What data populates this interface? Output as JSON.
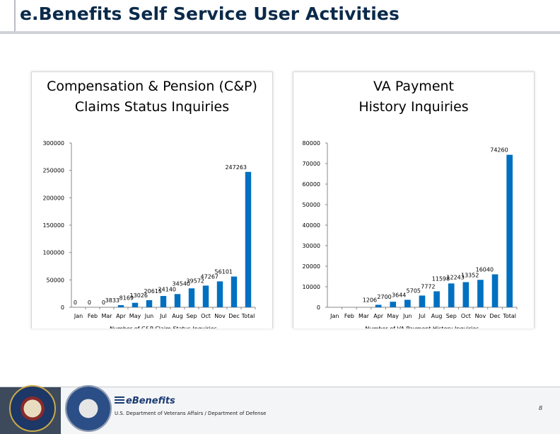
{
  "slide": {
    "title": "e.Benefits Self Service User Activities",
    "footer_org": "U.S. Department of Veterans Affairs / Department of Defense",
    "logo_text": "eBenefits",
    "page_number": "8"
  },
  "chart_data": [
    {
      "type": "bar",
      "title_lines": [
        "Compensation & Pension (C&P)",
        "Claims Status Inquiries"
      ],
      "xlabel": "Number of C&P Claim Status Inquiries",
      "ylabel": "",
      "categories": [
        "Jan",
        "Feb",
        "Mar",
        "Apr",
        "May",
        "Jun",
        "Jul",
        "Aug",
        "Sep",
        "Oct",
        "Nov",
        "Dec",
        "Total"
      ],
      "values": [
        0,
        0,
        0,
        3833,
        8169,
        13026,
        20615,
        24140,
        34540,
        39572,
        47267,
        56101,
        247263
      ],
      "data_labels": [
        "0",
        "0",
        "0",
        "3833",
        "8169",
        "13026",
        "20615",
        "24140",
        "34540",
        "39572",
        "47267",
        "56101",
        "247263"
      ],
      "ylim": [
        0,
        300000
      ],
      "yticks": [
        0,
        50000,
        100000,
        150000,
        200000,
        250000,
        300000
      ],
      "ytick_labels": [
        "0",
        "50000",
        "100000",
        "150000",
        "200000",
        "250000",
        "300000"
      ],
      "grid": false,
      "legend": "none",
      "bar_color": "#0070c0"
    },
    {
      "type": "bar",
      "title_lines": [
        "VA Payment",
        "History Inquiries"
      ],
      "xlabel": "Number of VA Payment History Inquiries",
      "ylabel": "",
      "categories": [
        "Jan",
        "Feb",
        "Mar",
        "Apr",
        "May",
        "Jun",
        "Jul",
        "Aug",
        "Sep",
        "Oct",
        "Nov",
        "Dec",
        "Total"
      ],
      "values": [
        0,
        0,
        0,
        1206,
        2700,
        3644,
        5705,
        7772,
        11598,
        12243,
        13352,
        16040,
        74260
      ],
      "data_labels": [
        "",
        "",
        "",
        "1206",
        "2700",
        "3644",
        "5705",
        "7772",
        "11598",
        "12243",
        "13352",
        "16040",
        "74260"
      ],
      "ylim": [
        0,
        80000
      ],
      "yticks": [
        0,
        10000,
        20000,
        30000,
        40000,
        50000,
        60000,
        70000,
        80000
      ],
      "ytick_labels": [
        "0",
        "10000",
        "20000",
        "30000",
        "40000",
        "50000",
        "60000",
        "70000",
        "80000"
      ],
      "grid": false,
      "legend": "none",
      "bar_color": "#0070c0"
    }
  ]
}
